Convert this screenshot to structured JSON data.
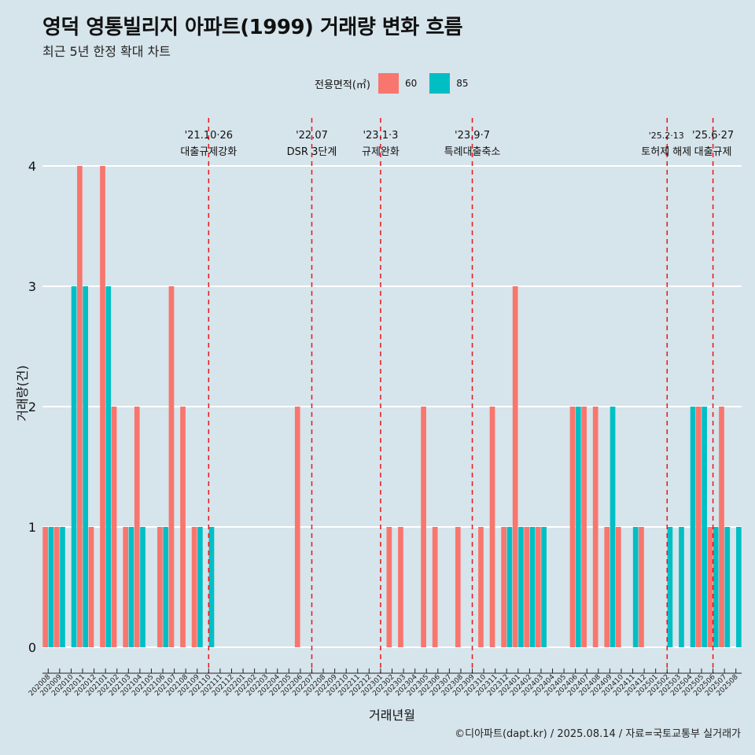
{
  "title": "영덕 영통빌리지 아파트(1999) 거래량 변화 흐름",
  "subtitle": "최근 5년 한정 확대 차트",
  "legend": {
    "title": "전용면적(㎡)",
    "items": [
      "60",
      "85"
    ]
  },
  "footer": "©디아파트(dapt.kr) / 2025.08.14 / 자료=국토교통부 실거래가",
  "colors": {
    "s60": "#f8766d",
    "s85": "#00bfc4",
    "background": "#d6e4eb",
    "grid": "#ffffff",
    "event_line": "#e8161b"
  },
  "chart_data": {
    "type": "bar",
    "xlabel": "거래년월",
    "ylabel": "거래량(건)",
    "ylim": [
      0,
      4
    ],
    "yticks": [
      0,
      1,
      2,
      3,
      4
    ],
    "categories": [
      "202008",
      "202009",
      "202010",
      "202011",
      "202012",
      "202101",
      "202102",
      "202103",
      "202104",
      "202105",
      "202106",
      "202107",
      "202108",
      "202109",
      "202110",
      "202111",
      "202112",
      "202201",
      "202202",
      "202203",
      "202204",
      "202205",
      "202206",
      "202207",
      "202208",
      "202209",
      "202210",
      "202211",
      "202212",
      "202301",
      "202302",
      "202303",
      "202304",
      "202305",
      "202306",
      "202307",
      "202308",
      "202309",
      "202310",
      "202311",
      "202312",
      "202401",
      "202402",
      "202403",
      "202404",
      "202405",
      "202406",
      "202407",
      "202408",
      "202409",
      "202410",
      "202411",
      "202412",
      "202501",
      "202502",
      "202503",
      "202504",
      "202505",
      "202506",
      "202507",
      "202508"
    ],
    "series": [
      {
        "name": "60",
        "values": [
          1,
          1,
          0,
          4,
          1,
          4,
          2,
          1,
          2,
          0,
          1,
          3,
          2,
          1,
          0,
          0,
          0,
          0,
          0,
          0,
          0,
          0,
          2,
          0,
          0,
          0,
          0,
          0,
          0,
          0,
          1,
          1,
          0,
          2,
          1,
          0,
          1,
          0,
          1,
          2,
          1,
          3,
          1,
          1,
          0,
          0,
          2,
          2,
          2,
          1,
          1,
          0,
          1,
          0,
          0,
          0,
          0,
          2,
          1,
          2,
          0
        ]
      },
      {
        "name": "85",
        "values": [
          1,
          1,
          3,
          3,
          0,
          3,
          0,
          1,
          1,
          0,
          1,
          0,
          0,
          1,
          1,
          0,
          0,
          0,
          0,
          0,
          0,
          0,
          0,
          0,
          0,
          0,
          0,
          0,
          0,
          0,
          0,
          0,
          0,
          0,
          0,
          0,
          0,
          0,
          0,
          0,
          1,
          1,
          1,
          1,
          0,
          0,
          2,
          0,
          0,
          2,
          0,
          1,
          0,
          0,
          1,
          1,
          2,
          2,
          1,
          1,
          1
        ]
      }
    ],
    "events": [
      {
        "category": "202110",
        "date": "'21.10·26",
        "label": "대출규제강화"
      },
      {
        "category": "202207",
        "date": "'22.07",
        "label": "DSR 3단계"
      },
      {
        "category": "202301",
        "date": "'23.1·3",
        "label": "규제완화"
      },
      {
        "category": "202309",
        "date": "'23.9·7",
        "label": "특례대출축소"
      },
      {
        "category": "202502",
        "date": "'25.2·13",
        "label": "토허제 해제"
      },
      {
        "category": "202506",
        "date": "'25.6·27",
        "label": "대출규제"
      }
    ]
  }
}
